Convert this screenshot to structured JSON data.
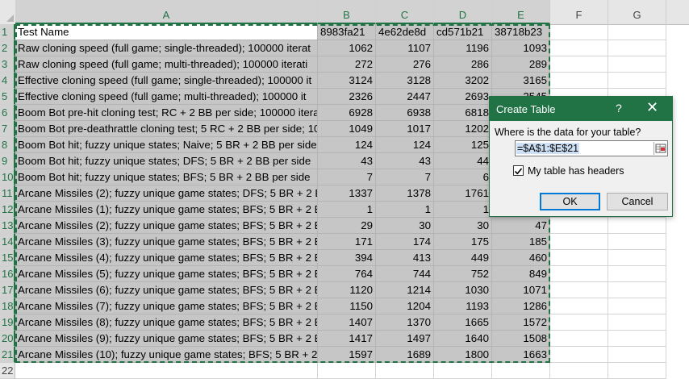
{
  "columns": [
    "A",
    "B",
    "C",
    "D",
    "E",
    "F",
    "G"
  ],
  "rows": [
    {
      "num": "1",
      "a": "Test Name",
      "vals": [
        "8983fa21",
        "4e62de8d",
        "cd571b21",
        "38718b23"
      ],
      "header": true
    },
    {
      "num": "2",
      "a": "Raw cloning speed (full game; single-threaded); 100000 iterat",
      "vals": [
        "1062",
        "1107",
        "1196",
        "1093"
      ]
    },
    {
      "num": "3",
      "a": "Raw cloning speed (full game; multi-threaded); 100000 iterati",
      "vals": [
        "272",
        "276",
        "286",
        "289"
      ]
    },
    {
      "num": "4",
      "a": "Effective cloning speed (full game; single-threaded); 100000 it",
      "vals": [
        "3124",
        "3128",
        "3202",
        "3165"
      ]
    },
    {
      "num": "5",
      "a": "Effective cloning speed (full game; multi-threaded); 100000 it",
      "vals": [
        "2326",
        "2447",
        "2693",
        "2545"
      ]
    },
    {
      "num": "6",
      "a": "Boom Bot pre-hit cloning test; RC + 2 BB per side; 100000 itera",
      "vals": [
        "6928",
        "6938",
        "6818",
        ""
      ]
    },
    {
      "num": "7",
      "a": "Boom Bot pre-deathrattle cloning test; 5 RC + 2 BB per side; 10",
      "vals": [
        "1049",
        "1017",
        "1202",
        ""
      ]
    },
    {
      "num": "8",
      "a": "Boom Bot hit; fuzzy unique states; Naive; 5 BR + 2 BB per side",
      "vals": [
        "124",
        "124",
        "125",
        ""
      ]
    },
    {
      "num": "9",
      "a": "Boom Bot hit; fuzzy unique states; DFS; 5 BR + 2 BB per side",
      "vals": [
        "43",
        "43",
        "44",
        ""
      ]
    },
    {
      "num": "10",
      "a": "Boom Bot hit; fuzzy unique states; BFS; 5 BR + 2 BB per side",
      "vals": [
        "7",
        "7",
        "6",
        ""
      ]
    },
    {
      "num": "11",
      "a": "Arcane Missiles (2); fuzzy unique game states; DFS; 5 BR + 2 BB",
      "vals": [
        "1337",
        "1378",
        "1761",
        ""
      ]
    },
    {
      "num": "12",
      "a": "Arcane Missiles (1); fuzzy unique game states; BFS; 5 BR + 2 BB",
      "vals": [
        "1",
        "1",
        "1",
        ""
      ]
    },
    {
      "num": "13",
      "a": "Arcane Missiles (2); fuzzy unique game states; BFS; 5 BR + 2 BB",
      "vals": [
        "29",
        "30",
        "30",
        "47"
      ]
    },
    {
      "num": "14",
      "a": "Arcane Missiles (3); fuzzy unique game states; BFS; 5 BR + 2 BB",
      "vals": [
        "171",
        "174",
        "175",
        "185"
      ]
    },
    {
      "num": "15",
      "a": "Arcane Missiles (4); fuzzy unique game states; BFS; 5 BR + 2 BB",
      "vals": [
        "394",
        "413",
        "449",
        "460"
      ]
    },
    {
      "num": "16",
      "a": "Arcane Missiles (5); fuzzy unique game states; BFS; 5 BR + 2 BB",
      "vals": [
        "764",
        "744",
        "752",
        "849"
      ]
    },
    {
      "num": "17",
      "a": "Arcane Missiles (6); fuzzy unique game states; BFS; 5 BR + 2 BB",
      "vals": [
        "1120",
        "1214",
        "1030",
        "1071"
      ]
    },
    {
      "num": "18",
      "a": "Arcane Missiles (7); fuzzy unique game states; BFS; 5 BR + 2 BB",
      "vals": [
        "1150",
        "1204",
        "1193",
        "1286"
      ]
    },
    {
      "num": "19",
      "a": "Arcane Missiles (8); fuzzy unique game states; BFS; 5 BR + 2 BB",
      "vals": [
        "1407",
        "1370",
        "1665",
        "1572"
      ]
    },
    {
      "num": "20",
      "a": "Arcane Missiles (9); fuzzy unique game states; BFS; 5 BR + 2 BB",
      "vals": [
        "1417",
        "1497",
        "1640",
        "1508"
      ]
    },
    {
      "num": "21",
      "a": "Arcane Missiles (10); fuzzy unique game states; BFS; 5 BR + 2 E",
      "vals": [
        "1597",
        "1689",
        "1800",
        "1663"
      ]
    },
    {
      "num": "22",
      "a": "",
      "vals": [
        "",
        "",
        "",
        ""
      ]
    }
  ],
  "dialog": {
    "title": "Create Table",
    "help": "?",
    "close": "✕",
    "prompt": "Where is the data for your table?",
    "range": "=$A$1:$E$21",
    "has_headers_label": "My table has headers",
    "has_headers_checked": true,
    "ok_label": "OK",
    "cancel_label": "Cancel"
  },
  "colors": {
    "accent": "#217346",
    "selection": "#c6c6c6"
  }
}
